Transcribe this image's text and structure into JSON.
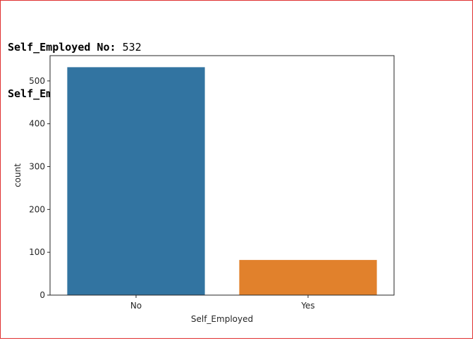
{
  "output": {
    "lines": [
      {
        "key": "Self_Employed No:",
        "value": "532"
      },
      {
        "key": "Self_Employed Yes:",
        "value": "82"
      }
    ]
  },
  "chart_data": {
    "type": "bar",
    "categories": [
      "No",
      "Yes"
    ],
    "values": [
      532,
      82
    ],
    "colors": [
      "#3274a1",
      "#e1812c"
    ],
    "title": "",
    "xlabel": "Self_Employed",
    "ylabel": "count",
    "ylim": [
      0,
      559
    ],
    "yticks": [
      0,
      100,
      200,
      300,
      400,
      500
    ],
    "grid": false,
    "legend": "none"
  }
}
